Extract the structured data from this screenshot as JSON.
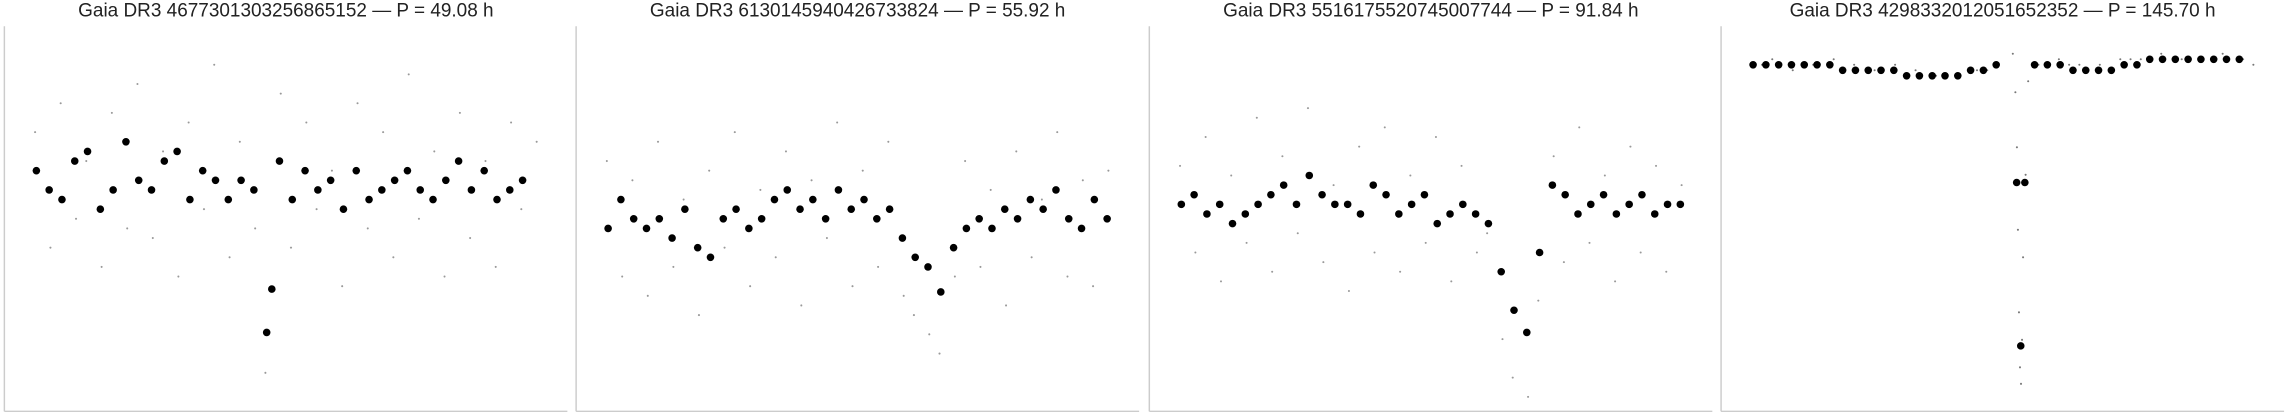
{
  "chart_data": [
    {
      "type": "scatter",
      "title": "Gaia DR3 4677301303256865152 — P = 49.08 h",
      "xlim": [
        -0.05,
        1.05
      ],
      "ylim": [
        0.76,
        1.16
      ],
      "series": [
        {
          "color": "#999999",
          "x": [
            0.01,
            0.04,
            0.06,
            0.09,
            0.11,
            0.14,
            0.16,
            0.19,
            0.21,
            0.24,
            0.26,
            0.29,
            0.31,
            0.34,
            0.36,
            0.39,
            0.41,
            0.44,
            0.46,
            0.49,
            0.51,
            0.54,
            0.56,
            0.59,
            0.61,
            0.64,
            0.66,
            0.69,
            0.71,
            0.74,
            0.76,
            0.79,
            0.81,
            0.84,
            0.86,
            0.89,
            0.91,
            0.94,
            0.96,
            0.99
          ],
          "values": [
            1.05,
            0.93,
            1.08,
            0.96,
            1.02,
            0.91,
            1.07,
            0.95,
            1.1,
            0.94,
            1.03,
            0.9,
            1.06,
            0.97,
            1.12,
            0.92,
            1.04,
            0.95,
            0.8,
            1.09,
            0.93,
            1.06,
            0.97,
            1.01,
            0.89,
            1.08,
            0.95,
            1.05,
            0.92,
            1.11,
            0.96,
            1.03,
            0.9,
            1.07,
            0.94,
            1.02,
            0.91,
            1.06,
            0.97,
            1.04
          ]
        },
        {
          "color": "#000000",
          "x": [
            0.0125,
            0.0375,
            0.0625,
            0.0875,
            0.1125,
            0.1375,
            0.1625,
            0.1875,
            0.2125,
            0.2375,
            0.2625,
            0.2875,
            0.3125,
            0.3375,
            0.3625,
            0.3875,
            0.4125,
            0.4375,
            0.4625,
            0.4725,
            0.4875,
            0.5125,
            0.5375,
            0.5625,
            0.5875,
            0.6125,
            0.6375,
            0.6625,
            0.6875,
            0.7125,
            0.7375,
            0.7625,
            0.7875,
            0.8125,
            0.8375,
            0.8625,
            0.8875,
            0.9125,
            0.9375,
            0.9625
          ],
          "values": [
            1.01,
            0.99,
            0.98,
            1.02,
            1.03,
            0.97,
            0.99,
            1.04,
            1.0,
            0.99,
            1.02,
            1.03,
            0.98,
            1.01,
            1.0,
            0.98,
            1.0,
            0.99,
            0.842,
            0.887,
            1.02,
            0.98,
            1.01,
            0.99,
            1.0,
            0.97,
            1.01,
            0.98,
            0.99,
            1.0,
            1.01,
            0.99,
            0.98,
            1.0,
            1.02,
            0.99,
            1.01,
            0.98,
            0.99,
            1.0
          ]
        }
      ]
    },
    {
      "type": "scatter",
      "title": "Gaia DR3 6130145940426733824 — P = 55.92 h",
      "xlim": [
        -0.05,
        1.05
      ],
      "ylim": [
        0.8,
        1.2
      ],
      "series": [
        {
          "color": "#999999",
          "x": [
            0.01,
            0.04,
            0.06,
            0.09,
            0.11,
            0.14,
            0.16,
            0.19,
            0.21,
            0.24,
            0.26,
            0.29,
            0.31,
            0.34,
            0.36,
            0.39,
            0.41,
            0.44,
            0.46,
            0.49,
            0.51,
            0.54,
            0.56,
            0.59,
            0.61,
            0.64,
            0.66,
            0.69,
            0.71,
            0.74,
            0.76,
            0.79,
            0.81,
            0.84,
            0.86,
            0.89,
            0.91,
            0.94,
            0.96,
            0.99
          ],
          "values": [
            1.06,
            0.94,
            1.04,
            0.92,
            1.08,
            0.95,
            1.02,
            0.9,
            1.05,
            0.97,
            1.09,
            0.93,
            1.03,
            0.96,
            1.07,
            0.91,
            1.04,
            0.98,
            1.1,
            0.93,
            1.05,
            0.95,
            1.08,
            0.92,
            0.9,
            0.88,
            0.86,
            0.94,
            1.06,
            0.95,
            1.03,
            0.91,
            1.07,
            0.96,
            1.02,
            1.09,
            0.94,
            1.04,
            0.93,
            1.05
          ]
        },
        {
          "color": "#000000",
          "x": [
            0.0125,
            0.0375,
            0.0625,
            0.0875,
            0.1125,
            0.1375,
            0.1625,
            0.1875,
            0.2125,
            0.2375,
            0.2625,
            0.2875,
            0.3125,
            0.3375,
            0.3625,
            0.3875,
            0.4125,
            0.4375,
            0.4625,
            0.4875,
            0.5125,
            0.5375,
            0.5625,
            0.5875,
            0.6125,
            0.6375,
            0.6625,
            0.6875,
            0.7125,
            0.7375,
            0.7625,
            0.7875,
            0.8125,
            0.8375,
            0.8625,
            0.8875,
            0.9125,
            0.9375,
            0.9625,
            0.9875
          ],
          "values": [
            0.99,
            1.02,
            1.0,
            0.99,
            1.0,
            0.98,
            1.01,
            0.97,
            0.96,
            1.0,
            1.01,
            0.99,
            1.0,
            1.02,
            1.03,
            1.01,
            1.02,
            1.0,
            1.03,
            1.01,
            1.02,
            1.0,
            1.01,
            0.98,
            0.96,
            0.95,
            0.924,
            0.97,
            0.99,
            1.0,
            0.99,
            1.01,
            1.0,
            1.02,
            1.01,
            1.03,
            1.0,
            0.99,
            1.02,
            1.0
          ]
        }
      ]
    },
    {
      "type": "scatter",
      "title": "Gaia DR3 5516175520745007744 — P = 91.84 h",
      "xlim": [
        -0.05,
        1.05
      ],
      "ylim": [
        0.785,
        1.185
      ],
      "series": [
        {
          "color": "#999999",
          "x": [
            0.01,
            0.04,
            0.06,
            0.09,
            0.11,
            0.14,
            0.16,
            0.19,
            0.21,
            0.24,
            0.26,
            0.29,
            0.31,
            0.34,
            0.36,
            0.39,
            0.41,
            0.44,
            0.46,
            0.49,
            0.51,
            0.54,
            0.56,
            0.59,
            0.61,
            0.64,
            0.66,
            0.69,
            0.71,
            0.74,
            0.76,
            0.79,
            0.81,
            0.84,
            0.86,
            0.89,
            0.91,
            0.94,
            0.96,
            0.99
          ],
          "values": [
            1.04,
            0.95,
            1.07,
            0.92,
            1.03,
            0.96,
            1.09,
            0.93,
            1.05,
            0.97,
            1.1,
            0.94,
            1.02,
            0.91,
            1.06,
            0.95,
            1.08,
            0.93,
            1.03,
            0.96,
            1.07,
            0.92,
            1.04,
            0.95,
            0.97,
            0.86,
            0.82,
            0.8,
            0.9,
            1.05,
            0.94,
            1.08,
            0.96,
            1.03,
            0.92,
            1.06,
            0.95,
            1.04,
            0.93,
            1.02
          ]
        },
        {
          "color": "#000000",
          "x": [
            0.0125,
            0.0375,
            0.0625,
            0.0875,
            0.1125,
            0.1375,
            0.1625,
            0.1875,
            0.2125,
            0.2375,
            0.2625,
            0.2875,
            0.3125,
            0.3375,
            0.3625,
            0.3875,
            0.4125,
            0.4375,
            0.4625,
            0.4875,
            0.5125,
            0.5375,
            0.5625,
            0.5875,
            0.6125,
            0.6375,
            0.6625,
            0.6875,
            0.7125,
            0.7375,
            0.7625,
            0.7875,
            0.8125,
            0.8375,
            0.8625,
            0.8875,
            0.9125,
            0.9375,
            0.9625,
            0.9875
          ],
          "values": [
            1.0,
            1.01,
            0.99,
            1.0,
            0.98,
            0.99,
            1.0,
            1.01,
            1.02,
            1.0,
            1.03,
            1.01,
            1.0,
            1.0,
            0.99,
            1.02,
            1.01,
            0.99,
            1.0,
            1.01,
            0.98,
            0.99,
            1.0,
            0.99,
            0.98,
            0.93,
            0.89,
            0.867,
            0.95,
            1.02,
            1.01,
            0.99,
            1.0,
            1.01,
            0.99,
            1.0,
            1.01,
            0.99,
            1.0,
            1.0
          ]
        }
      ]
    },
    {
      "type": "scatter",
      "title": "Gaia DR3 4298332012051652352 — P = 145.70 h",
      "xlim": [
        -0.05,
        1.05
      ],
      "ylim": [
        0.37,
        1.07
      ],
      "series": [
        {
          "color": "#777777",
          "x": [
            0.01,
            0.05,
            0.09,
            0.13,
            0.17,
            0.21,
            0.25,
            0.29,
            0.33,
            0.37,
            0.41,
            0.45,
            0.49,
            0.52,
            0.525,
            0.528,
            0.53,
            0.532,
            0.534,
            0.536,
            0.538,
            0.54,
            0.545,
            0.55,
            0.57,
            0.61,
            0.65,
            0.69,
            0.73,
            0.77,
            0.81,
            0.85,
            0.89,
            0.93,
            0.97,
            0.99,
            0.03,
            0.47,
            0.63,
            0.75
          ],
          "values": [
            1.0,
            1.01,
            0.99,
            1.0,
            1.01,
            1.0,
            0.99,
            1.0,
            0.99,
            0.98,
            0.98,
            0.99,
            1.0,
            1.02,
            0.95,
            0.85,
            0.7,
            0.55,
            0.45,
            0.42,
            0.5,
            0.65,
            0.8,
            0.97,
            1.0,
            1.01,
            1.0,
            1.0,
            1.01,
            1.01,
            1.02,
            1.01,
            1.01,
            1.02,
            1.01,
            1.0,
            1.0,
            0.99,
            1.0,
            1.01
          ]
        },
        {
          "color": "#000000",
          "x": [
            0.0125,
            0.0375,
            0.0625,
            0.0875,
            0.1125,
            0.1375,
            0.1625,
            0.1875,
            0.2125,
            0.2375,
            0.2625,
            0.2875,
            0.3125,
            0.3375,
            0.3625,
            0.3875,
            0.4125,
            0.4375,
            0.4625,
            0.4875,
            0.5275,
            0.5355,
            0.5435,
            0.5625,
            0.5875,
            0.6125,
            0.6375,
            0.6625,
            0.6875,
            0.7125,
            0.7375,
            0.7625,
            0.7875,
            0.8125,
            0.8375,
            0.8625,
            0.8875,
            0.9125,
            0.9375,
            0.9625
          ],
          "values": [
            1.0,
            1.0,
            1.0,
            1.0,
            1.0,
            1.0,
            1.0,
            0.99,
            0.99,
            0.99,
            0.99,
            0.99,
            0.98,
            0.98,
            0.98,
            0.98,
            0.98,
            0.99,
            0.99,
            1.0,
            0.786,
            0.489,
            0.786,
            1.0,
            1.0,
            1.0,
            0.99,
            0.99,
            0.99,
            0.99,
            1.0,
            1.0,
            1.01,
            1.01,
            1.01,
            1.01,
            1.01,
            1.01,
            1.01,
            1.01
          ]
        }
      ]
    }
  ]
}
